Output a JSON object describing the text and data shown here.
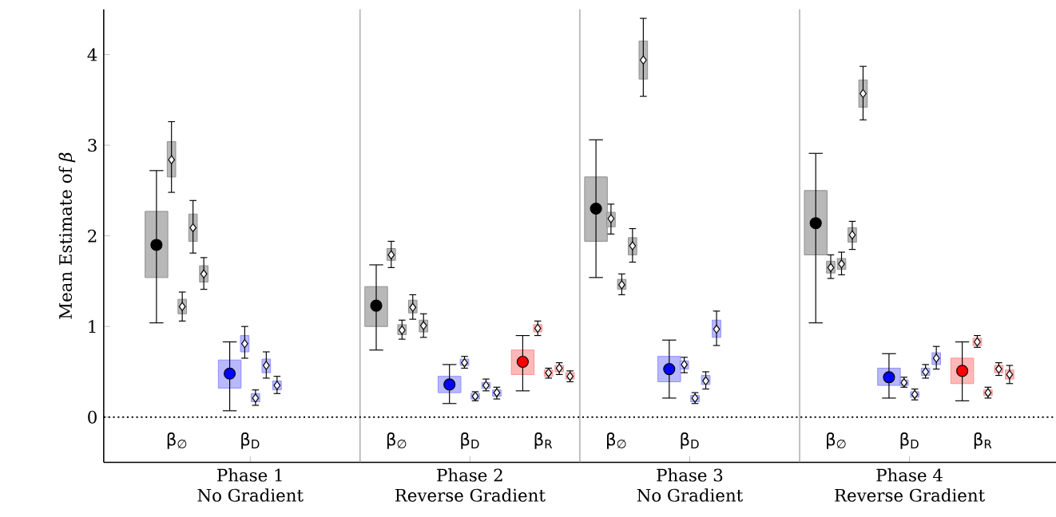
{
  "chart_data": {
    "type": "box",
    "ylabel": "Mean Estimate of *β*",
    "categories": [
      "β$_{∅}$",
      "β$_{D}$",
      null,
      "β$_{∅}$",
      "β$_{D}$",
      "β$_{R}$",
      "β$_{∅}$",
      "β$_{D}$",
      null,
      "β$_{∅}$",
      "β$_{D}$",
      "β$_{R}$"
    ],
    "ylim": [
      -0.5,
      4.5
    ],
    "yticks": [
      0,
      1,
      2,
      3,
      4
    ],
    "ref_lines": [
      {
        "axis": "y",
        "value": 0,
        "color": "#000000",
        "line_style": "dotted"
      }
    ],
    "annotations": [
      "Phase 1\nNo Gradient",
      "Phase 2\nReverse Gradient",
      "Phase 3\nNo Gradient",
      "Phase 4\nReverse Gradient"
    ],
    "series": [
      {
        "marker": "circle",
        "colors": [
          "#b8b8b8",
          "#b8b8ff",
          null,
          "#b8b8b8",
          "#b8b8ff",
          "#ffb8b8",
          "#b8b8b8",
          "#b8b8ff",
          null,
          "#b8b8b8",
          "#b8b8ff",
          "#ffb8b8"
        ],
        "boxes": [
          {
            "low": 1.04,
            "q1": 1.54,
            "median": 1.9,
            "q3": 2.27,
            "high": 2.72
          },
          {
            "low": 0.07,
            "q1": 0.32,
            "median": 0.48,
            "q3": 0.63,
            "high": 0.83
          },
          null,
          {
            "low": 0.74,
            "q1": 1.0,
            "median": 1.23,
            "q3": 1.44,
            "high": 1.68
          },
          {
            "low": 0.15,
            "q1": 0.27,
            "median": 0.36,
            "q3": 0.45,
            "high": 0.58
          },
          {
            "low": 0.29,
            "q1": 0.47,
            "median": 0.61,
            "q3": 0.74,
            "high": 0.9
          },
          {
            "low": 1.54,
            "q1": 1.94,
            "median": 2.3,
            "q3": 2.65,
            "high": 3.06
          },
          {
            "low": 0.21,
            "q1": 0.39,
            "median": 0.53,
            "q3": 0.67,
            "high": 0.85
          },
          null,
          {
            "low": 1.04,
            "q1": 1.79,
            "median": 2.14,
            "q3": 2.5,
            "high": 2.91
          },
          {
            "low": 0.21,
            "q1": 0.35,
            "median": 0.44,
            "q3": 0.54,
            "high": 0.7
          },
          {
            "low": 0.18,
            "q1": 0.37,
            "median": 0.51,
            "q3": 0.65,
            "high": 0.83
          }
        ]
      },
      {
        "marker": "diamond",
        "colors": [
          "#b8b8b8",
          "#b8b8ff",
          null,
          "#b8b8b8",
          "#b8b8ff",
          "#ffb8b8",
          "#b8b8b8",
          "#b8b8ff",
          null,
          "#b8b8b8",
          "#b8b8ff",
          "#ffb8b8"
        ],
        "boxes": [
          {
            "low": 2.48,
            "q1": 2.65,
            "median": 2.84,
            "q3": 3.04,
            "high": 3.26
          },
          {
            "low": 0.65,
            "q1": 0.72,
            "median": 0.81,
            "q3": 0.9,
            "high": 1.0
          },
          null,
          {
            "low": 1.65,
            "q1": 1.73,
            "median": 1.79,
            "q3": 1.86,
            "high": 1.94
          },
          {
            "low": 0.54,
            "q1": 0.57,
            "median": 0.6,
            "q3": 0.64,
            "high": 0.67
          },
          {
            "low": 0.9,
            "q1": 0.94,
            "median": 0.98,
            "q3": 1.02,
            "high": 1.06
          },
          {
            "low": 2.02,
            "q1": 2.1,
            "median": 2.19,
            "q3": 2.26,
            "high": 2.35
          },
          {
            "low": 0.49,
            "q1": 0.53,
            "median": 0.58,
            "q3": 0.62,
            "high": 0.66
          },
          null,
          {
            "low": 1.53,
            "q1": 1.59,
            "median": 1.65,
            "q3": 1.72,
            "high": 1.79
          },
          {
            "low": 0.33,
            "q1": 0.35,
            "median": 0.38,
            "q3": 0.41,
            "high": 0.44
          },
          {
            "low": 0.77,
            "q1": 0.79,
            "median": 0.83,
            "q3": 0.87,
            "high": 0.9
          }
        ]
      },
      {
        "marker": "diamond",
        "colors": [
          "#b8b8b8",
          "#b8b8ff",
          null,
          "#b8b8b8",
          "#b8b8ff",
          "#ffb8b8",
          "#b8b8b8",
          "#b8b8ff",
          null,
          "#b8b8b8",
          "#b8b8ff",
          "#ffb8b8"
        ],
        "boxes": [
          {
            "low": 1.06,
            "q1": 1.14,
            "median": 1.22,
            "q3": 1.3,
            "high": 1.38
          },
          {
            "low": 0.13,
            "q1": 0.17,
            "median": 0.21,
            "q3": 0.26,
            "high": 0.3
          },
          null,
          {
            "low": 0.86,
            "q1": 0.91,
            "median": 0.96,
            "q3": 1.02,
            "high": 1.07
          },
          {
            "low": 0.18,
            "q1": 0.2,
            "median": 0.23,
            "q3": 0.26,
            "high": 0.28
          },
          {
            "low": 0.43,
            "q1": 0.45,
            "median": 0.49,
            "q3": 0.52,
            "high": 0.54
          },
          {
            "low": 1.35,
            "q1": 1.41,
            "median": 1.46,
            "q3": 1.52,
            "high": 1.58
          },
          {
            "low": 0.15,
            "q1": 0.17,
            "median": 0.21,
            "q3": 0.24,
            "high": 0.27
          },
          null,
          {
            "low": 1.57,
            "q1": 1.63,
            "median": 1.69,
            "q3": 1.75,
            "high": 1.82
          },
          {
            "low": 0.19,
            "q1": 0.22,
            "median": 0.25,
            "q3": 0.28,
            "high": 0.31
          },
          {
            "low": 0.21,
            "q1": 0.24,
            "median": 0.27,
            "q3": 0.3,
            "high": 0.33
          }
        ]
      },
      {
        "marker": "diamond",
        "colors": [
          "#b8b8b8",
          "#b8b8ff",
          null,
          "#b8b8b8",
          "#b8b8ff",
          "#ffb8b8",
          "#b8b8b8",
          "#b8b8ff",
          null,
          "#b8b8b8",
          "#b8b8ff",
          "#ffb8b8"
        ],
        "boxes": [
          {
            "low": 1.81,
            "q1": 1.94,
            "median": 2.09,
            "q3": 2.24,
            "high": 2.39
          },
          {
            "low": 0.43,
            "q1": 0.49,
            "median": 0.57,
            "q3": 0.64,
            "high": 0.72
          },
          null,
          {
            "low": 1.08,
            "q1": 1.15,
            "median": 1.21,
            "q3": 1.29,
            "high": 1.35
          },
          {
            "low": 0.29,
            "q1": 0.32,
            "median": 0.35,
            "q3": 0.38,
            "high": 0.42
          },
          {
            "low": 0.47,
            "q1": 0.5,
            "median": 0.54,
            "q3": 0.57,
            "high": 0.6
          },
          {
            "low": 1.71,
            "q1": 1.79,
            "median": 1.89,
            "q3": 1.98,
            "high": 2.08
          },
          {
            "low": 0.31,
            "q1": 0.36,
            "median": 0.4,
            "q3": 0.46,
            "high": 0.5
          },
          null,
          {
            "low": 1.85,
            "q1": 1.93,
            "median": 2.01,
            "q3": 2.09,
            "high": 2.16
          },
          {
            "low": 0.43,
            "q1": 0.46,
            "median": 0.5,
            "q3": 0.54,
            "high": 0.58
          },
          {
            "low": 0.46,
            "q1": 0.49,
            "median": 0.53,
            "q3": 0.57,
            "high": 0.6
          }
        ]
      },
      {
        "marker": "diamond",
        "colors": [
          "#b8b8b8",
          "#b8b8ff",
          null,
          "#b8b8b8",
          "#b8b8ff",
          "#ffb8b8",
          "#b8b8b8",
          "#b8b8ff",
          null,
          "#b8b8b8",
          "#b8b8ff",
          "#ffb8b8"
        ],
        "boxes": [
          {
            "low": 1.41,
            "q1": 1.49,
            "median": 1.58,
            "q3": 1.67,
            "high": 1.76
          },
          {
            "low": 0.26,
            "q1": 0.3,
            "median": 0.35,
            "q3": 0.4,
            "high": 0.45
          },
          null,
          {
            "low": 0.88,
            "q1": 0.94,
            "median": 1.01,
            "q3": 1.07,
            "high": 1.14
          },
          {
            "low": 0.2,
            "q1": 0.23,
            "median": 0.27,
            "q3": 0.3,
            "high": 0.33
          },
          {
            "low": 0.39,
            "q1": 0.42,
            "median": 0.45,
            "q3": 0.49,
            "high": 0.51
          },
          {
            "low": 3.54,
            "q1": 3.73,
            "median": 3.94,
            "q3": 4.15,
            "high": 4.4
          },
          {
            "low": 0.79,
            "q1": 0.88,
            "median": 0.97,
            "q3": 1.07,
            "high": 1.17
          },
          null,
          {
            "low": 3.28,
            "q1": 3.42,
            "median": 3.57,
            "q3": 3.72,
            "high": 3.87
          },
          {
            "low": 0.53,
            "q1": 0.58,
            "median": 0.65,
            "q3": 0.71,
            "high": 0.78
          },
          {
            "low": 0.37,
            "q1": 0.42,
            "median": 0.47,
            "q3": 0.52,
            "high": 0.57
          }
        ]
      }
    ]
  }
}
